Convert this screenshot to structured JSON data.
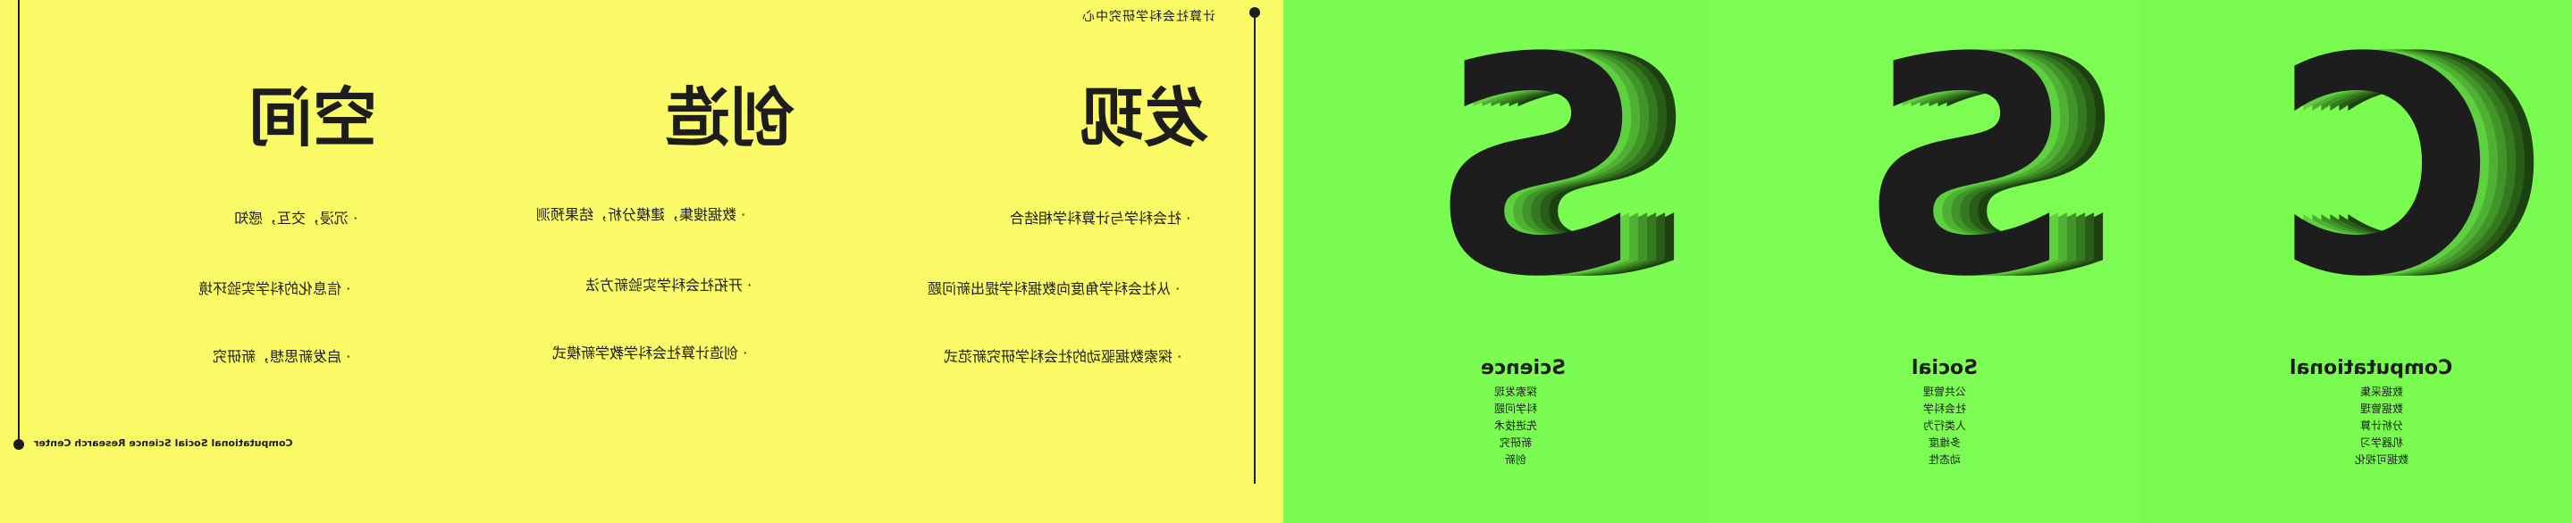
{
  "colors": {
    "yellow": "#fafa66",
    "green": "#7bfc52",
    "ink": "#1d1d1d"
  },
  "org_cn": "计算社会科学研究中心",
  "org_en": "Computational Social Science Research Center",
  "columns": [
    {
      "title": "发现",
      "bullets": [
        "· 社会科学与计算科学相结合",
        "· 从社会科学角度向数据科学提出新问题",
        "· 探索数据驱动的社会科学研究新范式"
      ]
    },
    {
      "title": "创造",
      "bullets": [
        "· 数据搜集，建模分析，结果预测",
        "· 开拓社会科学实验新方法",
        "· 创造计算社会科学教学新模式"
      ]
    },
    {
      "title": "空间",
      "bullets": [
        "· 沉浸，交互，感知",
        "· 信息化的科学实验环境",
        "· 启发新思想，新研究"
      ]
    }
  ],
  "letters": [
    {
      "glyph": "C",
      "heading": "Computational",
      "items": [
        "数据采集",
        "数据管理",
        "分析计算",
        "机器学习",
        "数据可视化"
      ]
    },
    {
      "glyph": "S",
      "heading": "Social",
      "items": [
        "公共管理",
        "社会科学",
        "人类行为",
        "多维度",
        "动态性"
      ]
    },
    {
      "glyph": "S",
      "heading": "Science",
      "items": [
        "探索发现",
        "科学问题",
        "先进技术",
        "新研究",
        "创新"
      ]
    }
  ]
}
